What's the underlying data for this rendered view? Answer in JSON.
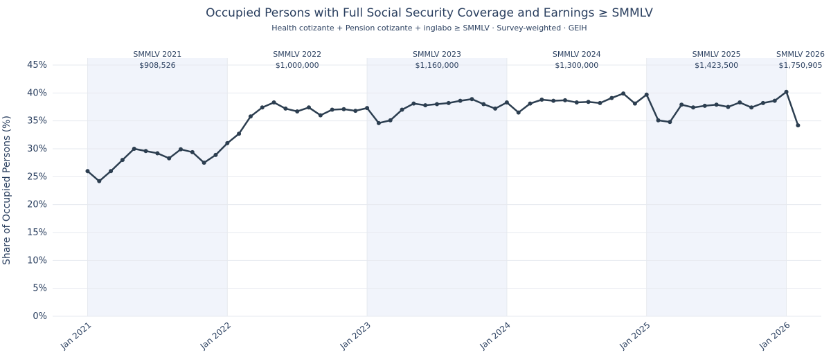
{
  "chart_data": {
    "type": "line",
    "title": "Occupied Persons with Full Social Security Coverage and Earnings ≥ SMMLV",
    "subtitle": "Health cotizante + Pension cotizante + inglabo ≥ SMMLV · Survey-weighted · GEIH",
    "ylabel": "Share of Occupied Persons (%)",
    "x": [
      "2021-01",
      "2021-02",
      "2021-03",
      "2021-04",
      "2021-05",
      "2021-06",
      "2021-07",
      "2021-08",
      "2021-09",
      "2021-10",
      "2021-11",
      "2021-12",
      "2022-01",
      "2022-02",
      "2022-03",
      "2022-04",
      "2022-05",
      "2022-06",
      "2022-07",
      "2022-08",
      "2022-09",
      "2022-10",
      "2022-11",
      "2022-12",
      "2023-01",
      "2023-02",
      "2023-03",
      "2023-04",
      "2023-05",
      "2023-06",
      "2023-07",
      "2023-08",
      "2023-09",
      "2023-10",
      "2023-11",
      "2023-12",
      "2024-01",
      "2024-02",
      "2024-03",
      "2024-04",
      "2024-05",
      "2024-06",
      "2024-07",
      "2024-08",
      "2024-09",
      "2024-10",
      "2024-11",
      "2024-12",
      "2025-01",
      "2025-02",
      "2025-03",
      "2025-04",
      "2025-05",
      "2025-06",
      "2025-07",
      "2025-08",
      "2025-09",
      "2025-10",
      "2025-11",
      "2025-12",
      "2026-01",
      "2026-02"
    ],
    "series": [
      {
        "color": "#2c3e50",
        "values": [
          26.0,
          24.2,
          26.0,
          28.0,
          30.0,
          29.6,
          29.2,
          28.3,
          29.9,
          29.4,
          27.5,
          28.9,
          31.0,
          32.7,
          35.8,
          37.4,
          38.3,
          37.2,
          36.7,
          37.4,
          36.0,
          37.0,
          37.1,
          36.8,
          37.3,
          34.6,
          35.1,
          37.0,
          38.1,
          37.8,
          38.0,
          38.2,
          38.6,
          38.9,
          38.0,
          37.2,
          38.3,
          36.5,
          38.1,
          38.8,
          38.6,
          38.7,
          38.3,
          38.4,
          38.2,
          39.1,
          39.9,
          38.1,
          39.7,
          35.1,
          34.8,
          37.9,
          37.4,
          37.7,
          37.9,
          37.5,
          38.3,
          37.4,
          38.2,
          38.6,
          40.2,
          34.2
        ]
      }
    ],
    "xlim": [
      "2020-10",
      "2026-04"
    ],
    "xticks": [
      {
        "value": "2021-01",
        "label": "Jan 2021"
      },
      {
        "value": "2022-01",
        "label": "Jan 2022"
      },
      {
        "value": "2023-01",
        "label": "Jan 2023"
      },
      {
        "value": "2024-01",
        "label": "Jan 2024"
      },
      {
        "value": "2025-01",
        "label": "Jan 2025"
      },
      {
        "value": "2026-01",
        "label": "Jan 2026"
      }
    ],
    "ylim": [
      0,
      45
    ],
    "yticks": [
      {
        "value": 0,
        "label": "0%"
      },
      {
        "value": 5,
        "label": "5%"
      },
      {
        "value": 10,
        "label": "10%"
      },
      {
        "value": 15,
        "label": "15%"
      },
      {
        "value": 20,
        "label": "20%"
      },
      {
        "value": 25,
        "label": "25%"
      },
      {
        "value": 30,
        "label": "30%"
      },
      {
        "value": 35,
        "label": "35%"
      },
      {
        "value": 40,
        "label": "40%"
      },
      {
        "value": 45,
        "label": "45%"
      }
    ],
    "grid": true,
    "annotations": [
      {
        "label": "SMMLV 2021",
        "value": "$908,526"
      },
      {
        "label": "SMMLV 2022",
        "value": "$1,000,000"
      },
      {
        "label": "SMMLV 2023",
        "value": "$1,160,000"
      },
      {
        "label": "SMMLV 2024",
        "value": "$1,300,000"
      },
      {
        "label": "SMMLV 2025",
        "value": "$1,423,500"
      },
      {
        "label": "SMMLV 2026",
        "value": "$1,750,905"
      }
    ]
  }
}
